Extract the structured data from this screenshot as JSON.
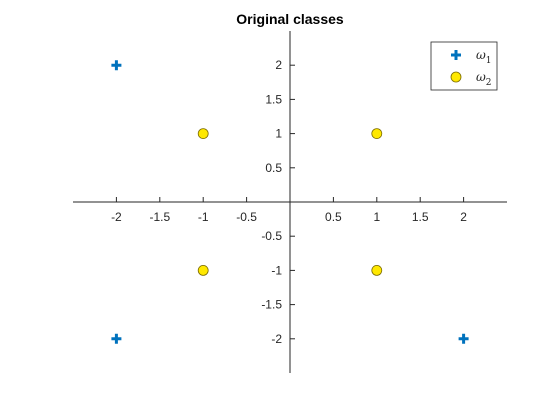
{
  "chart_data": {
    "type": "scatter",
    "title": "Original classes",
    "xlabel": "",
    "ylabel": "",
    "xlim": [
      -2.5,
      2.5
    ],
    "ylim": [
      -2.5,
      2.5
    ],
    "x_ticks": [
      -2,
      -1.5,
      -1,
      -0.5,
      0.5,
      1,
      1.5,
      2
    ],
    "x_tick_labels": [
      "-2",
      "-1.5",
      "-1",
      "-0.5",
      "0.5",
      "1",
      "1.5",
      "2"
    ],
    "y_ticks": [
      2,
      1.5,
      1,
      0.5,
      -0.5,
      -1,
      -1.5,
      -2
    ],
    "y_tick_labels": [
      "2",
      "1.5",
      "1",
      "0.5",
      "-0.5",
      "-1",
      "-1.5",
      "-2"
    ],
    "axes_through_origin": true,
    "grid": false,
    "legend_position": "top-right",
    "series": [
      {
        "name": "ω₁",
        "legend_symbol": "ω",
        "legend_subscript": "1",
        "marker": "plus",
        "color": "#0072BD",
        "points": [
          [
            -2,
            2
          ],
          [
            -2,
            -2
          ],
          [
            2,
            -2
          ]
        ]
      },
      {
        "name": "ω₂",
        "legend_symbol": "ω",
        "legend_subscript": "2",
        "marker": "circle",
        "color": "#FFE800",
        "edge_color": "#7a6a00",
        "points": [
          [
            -1,
            1
          ],
          [
            1,
            1
          ],
          [
            -1,
            -1
          ],
          [
            1,
            -1
          ]
        ]
      }
    ]
  }
}
